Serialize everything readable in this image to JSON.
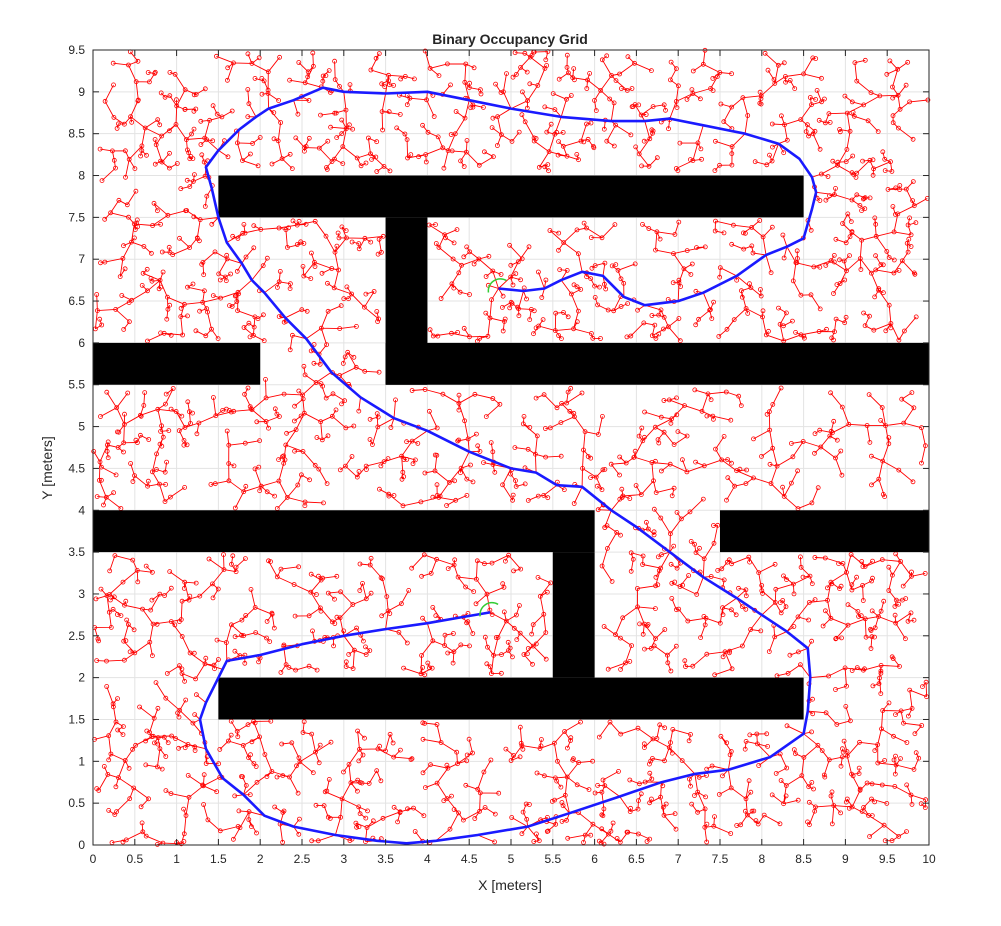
{
  "chart_data": {
    "type": "occupancy-grid-path",
    "title": "Binary Occupancy Grid",
    "xlabel": "X [meters]",
    "ylabel": "Y [meters]",
    "xlim": [
      0,
      10
    ],
    "ylim": [
      0,
      9.5
    ],
    "xticks": [
      0,
      0.5,
      1,
      1.5,
      2,
      2.5,
      3,
      3.5,
      4,
      4.5,
      5,
      5.5,
      6,
      6.5,
      7,
      7.5,
      8,
      8.5,
      9,
      9.5,
      10
    ],
    "xtick_labels": [
      "0",
      "0.5",
      "1",
      "1.5",
      "2",
      "2.5",
      "3",
      "3.5",
      "4",
      "4.5",
      "5",
      "5.5",
      "6",
      "6.5",
      "7",
      "7.5",
      "8",
      "8.5",
      "9",
      "9.5",
      "10"
    ],
    "yticks": [
      0,
      0.5,
      1,
      1.5,
      2,
      2.5,
      3,
      3.5,
      4,
      4.5,
      5,
      5.5,
      6,
      6.5,
      7,
      7.5,
      8,
      8.5,
      9,
      9.5
    ],
    "ytick_labels": [
      "0",
      "0.5",
      "1",
      "1.5",
      "2",
      "2.5",
      "3",
      "3.5",
      "4",
      "4.5",
      "5",
      "5.5",
      "6",
      "6.5",
      "7",
      "7.5",
      "8",
      "8.5",
      "9",
      "9.5"
    ],
    "grid": true,
    "obstacles": [
      {
        "x0": 1.5,
        "x1": 8.5,
        "y0": 7.5,
        "y1": 8.0
      },
      {
        "x0": 3.5,
        "x1": 4.0,
        "y0": 5.5,
        "y1": 7.5
      },
      {
        "x0": 3.5,
        "x1": 10.0,
        "y0": 5.5,
        "y1": 6.0
      },
      {
        "x0": 0.0,
        "x1": 2.0,
        "y0": 5.5,
        "y1": 6.0
      },
      {
        "x0": 0.0,
        "x1": 6.0,
        "y0": 3.5,
        "y1": 4.0
      },
      {
        "x0": 5.5,
        "x1": 6.0,
        "y0": 2.0,
        "y1": 3.5
      },
      {
        "x0": 7.5,
        "x1": 10.0,
        "y0": 3.5,
        "y1": 4.0
      },
      {
        "x0": 1.5,
        "x1": 8.5,
        "y0": 1.5,
        "y1": 2.0
      }
    ],
    "tree_color": "#ff0000",
    "path_color": "#1a1aff",
    "start_goal_color": "#33cc33",
    "path": [
      [
        4.85,
        6.65
      ],
      [
        5.15,
        6.62
      ],
      [
        5.4,
        6.65
      ],
      [
        5.6,
        6.75
      ],
      [
        5.85,
        6.85
      ],
      [
        6.1,
        6.8
      ],
      [
        6.35,
        6.55
      ],
      [
        6.6,
        6.45
      ],
      [
        7.0,
        6.5
      ],
      [
        7.3,
        6.6
      ],
      [
        7.7,
        6.8
      ],
      [
        8.05,
        7.05
      ],
      [
        8.3,
        7.15
      ],
      [
        8.5,
        7.25
      ],
      [
        8.6,
        7.6
      ],
      [
        8.65,
        7.8
      ],
      [
        8.6,
        7.98
      ],
      [
        8.45,
        8.2
      ],
      [
        8.2,
        8.38
      ],
      [
        7.8,
        8.5
      ],
      [
        7.3,
        8.6
      ],
      [
        6.9,
        8.68
      ],
      [
        6.6,
        8.65
      ],
      [
        6.2,
        8.65
      ],
      [
        5.6,
        8.7
      ],
      [
        5.0,
        8.8
      ],
      [
        4.5,
        8.9
      ],
      [
        4.0,
        9.0
      ],
      [
        3.5,
        8.98
      ],
      [
        3.0,
        9.0
      ],
      [
        2.75,
        9.05
      ],
      [
        2.4,
        8.9
      ],
      [
        2.1,
        8.8
      ],
      [
        1.95,
        8.7
      ],
      [
        1.75,
        8.55
      ],
      [
        1.5,
        8.3
      ],
      [
        1.35,
        8.1
      ],
      [
        1.42,
        7.85
      ],
      [
        1.5,
        7.5
      ],
      [
        1.6,
        7.2
      ],
      [
        1.78,
        6.95
      ],
      [
        1.9,
        6.75
      ],
      [
        2.05,
        6.6
      ],
      [
        2.3,
        6.3
      ],
      [
        2.55,
        6.05
      ],
      [
        2.85,
        5.65
      ],
      [
        3.2,
        5.35
      ],
      [
        3.6,
        5.1
      ],
      [
        4.0,
        4.95
      ],
      [
        4.5,
        4.7
      ],
      [
        5.0,
        4.5
      ],
      [
        5.3,
        4.45
      ],
      [
        5.55,
        4.3
      ],
      [
        5.85,
        4.28
      ],
      [
        6.2,
        4.0
      ],
      [
        6.5,
        3.8
      ],
      [
        6.9,
        3.5
      ],
      [
        7.3,
        3.2
      ],
      [
        7.7,
        2.95
      ],
      [
        8.0,
        2.75
      ],
      [
        8.3,
        2.55
      ],
      [
        8.55,
        2.35
      ],
      [
        8.58,
        2.0
      ],
      [
        8.55,
        1.6
      ],
      [
        8.5,
        1.33
      ],
      [
        8.1,
        1.05
      ],
      [
        7.6,
        0.9
      ],
      [
        7.2,
        0.85
      ],
      [
        6.8,
        0.75
      ],
      [
        6.3,
        0.58
      ],
      [
        5.7,
        0.38
      ],
      [
        5.2,
        0.22
      ],
      [
        4.6,
        0.12
      ],
      [
        4.1,
        0.05
      ],
      [
        3.75,
        0.02
      ],
      [
        3.4,
        0.05
      ],
      [
        2.9,
        0.12
      ],
      [
        2.4,
        0.22
      ],
      [
        2.05,
        0.35
      ],
      [
        1.8,
        0.6
      ],
      [
        1.55,
        0.8
      ],
      [
        1.35,
        1.15
      ],
      [
        1.28,
        1.5
      ],
      [
        1.35,
        1.7
      ],
      [
        1.55,
        2.1
      ],
      [
        1.6,
        2.2
      ],
      [
        2.0,
        2.27
      ],
      [
        2.5,
        2.4
      ],
      [
        3.0,
        2.5
      ],
      [
        3.5,
        2.58
      ],
      [
        4.0,
        2.65
      ],
      [
        4.4,
        2.72
      ],
      [
        4.75,
        2.78
      ]
    ],
    "start": [
      4.75,
      2.78
    ],
    "goal": [
      4.85,
      6.65
    ]
  }
}
